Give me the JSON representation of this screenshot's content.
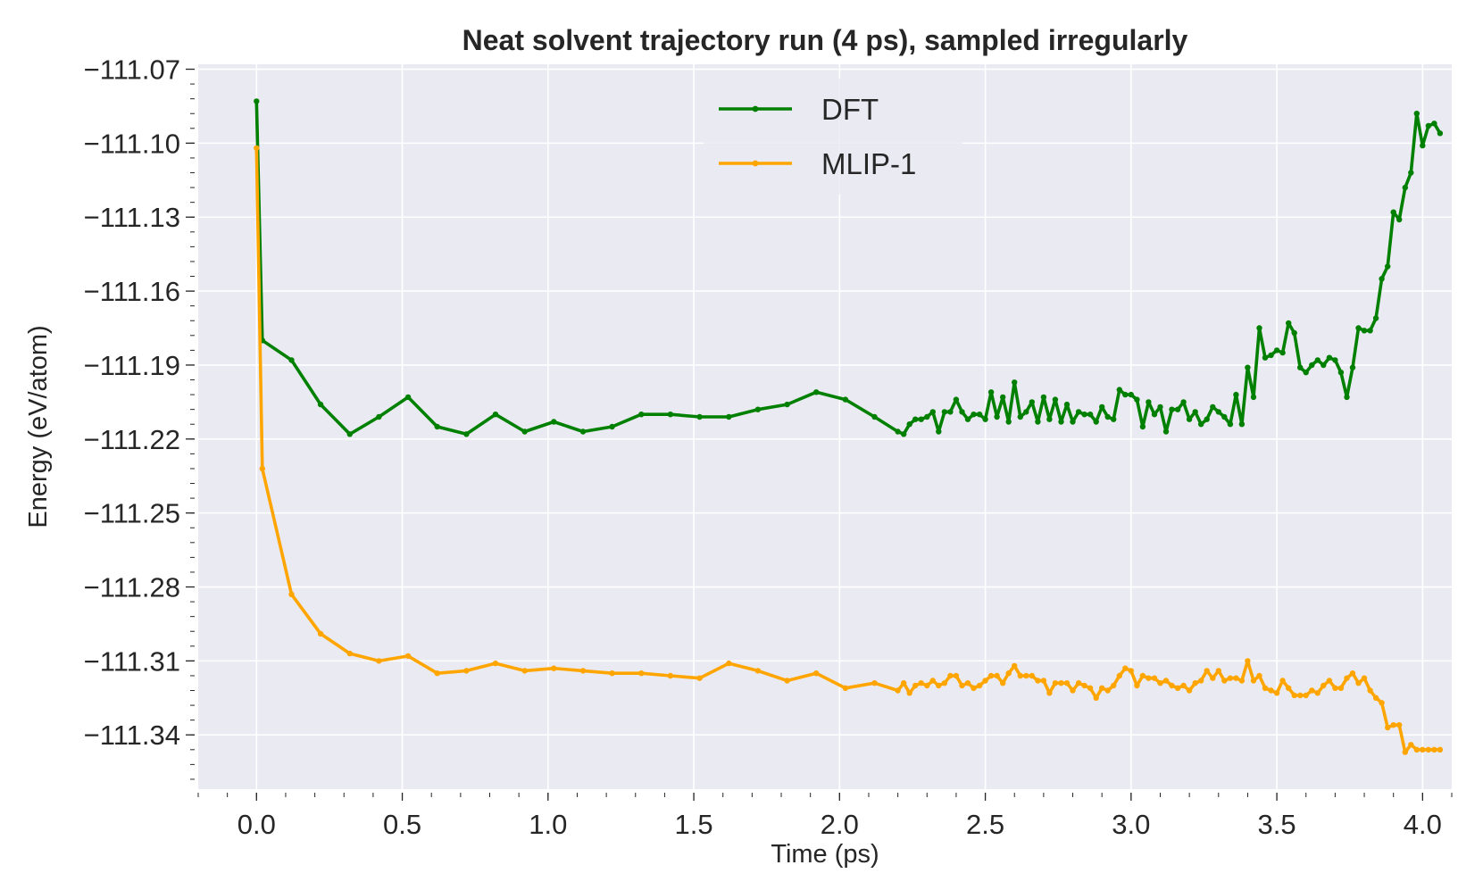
{
  "chart_data": {
    "type": "line",
    "title": "Neat solvent trajectory run (4 ps), sampled irregularly",
    "xlabel": "Time (ps)",
    "ylabel": "Energy (eV/atom)",
    "xlim": [
      -0.2,
      4.1
    ],
    "ylim": [
      -111.362,
      -111.068
    ],
    "xticks": [
      0.0,
      0.5,
      1.0,
      1.5,
      2.0,
      2.5,
      3.0,
      3.5,
      4.0
    ],
    "xtick_labels": [
      "0.0",
      "0.5",
      "1.0",
      "1.5",
      "2.0",
      "2.5",
      "3.0",
      "3.5",
      "4.0"
    ],
    "yticks": [
      -111.07,
      -111.1,
      -111.13,
      -111.16,
      -111.19,
      -111.22,
      -111.25,
      -111.28,
      -111.31,
      -111.34
    ],
    "ytick_labels": [
      "−111.07",
      "−111.10",
      "−111.13",
      "−111.16",
      "−111.19",
      "−111.22",
      "−111.25",
      "−111.28",
      "−111.31",
      "−111.34"
    ],
    "grid": true,
    "legend": "upper center",
    "colors": {
      "plot_bg": "#eaeaf2",
      "grid": "#ffffff",
      "text": "#262626",
      "dft": "#008000",
      "mlip": "#ffa500"
    },
    "series": [
      {
        "name": "DFT",
        "color": "#008000",
        "points": [
          [
            0.0,
            -111.083
          ],
          [
            0.02,
            -111.18
          ],
          [
            0.12,
            -111.188
          ],
          [
            0.22,
            -111.206
          ],
          [
            0.32,
            -111.218
          ],
          [
            0.42,
            -111.211
          ],
          [
            0.52,
            -111.203
          ],
          [
            0.62,
            -111.215
          ],
          [
            0.72,
            -111.218
          ],
          [
            0.82,
            -111.21
          ],
          [
            0.92,
            -111.217
          ],
          [
            1.02,
            -111.213
          ],
          [
            1.12,
            -111.217
          ],
          [
            1.22,
            -111.215
          ],
          [
            1.32,
            -111.21
          ],
          [
            1.42,
            -111.21
          ],
          [
            1.52,
            -111.211
          ],
          [
            1.62,
            -111.211
          ],
          [
            1.72,
            -111.208
          ],
          [
            1.82,
            -111.206
          ],
          [
            1.92,
            -111.201
          ],
          [
            2.02,
            -111.204
          ],
          [
            2.12,
            -111.211
          ],
          [
            2.2,
            -111.217
          ],
          [
            2.22,
            -111.218
          ],
          [
            2.24,
            -111.214
          ],
          [
            2.26,
            -111.212
          ],
          [
            2.28,
            -111.212
          ],
          [
            2.3,
            -111.211
          ],
          [
            2.32,
            -111.209
          ],
          [
            2.34,
            -111.217
          ],
          [
            2.36,
            -111.209
          ],
          [
            2.38,
            -111.209
          ],
          [
            2.4,
            -111.204
          ],
          [
            2.42,
            -111.209
          ],
          [
            2.44,
            -111.212
          ],
          [
            2.46,
            -111.21
          ],
          [
            2.48,
            -111.21
          ],
          [
            2.5,
            -111.212
          ],
          [
            2.52,
            -111.201
          ],
          [
            2.54,
            -111.211
          ],
          [
            2.56,
            -111.203
          ],
          [
            2.58,
            -111.213
          ],
          [
            2.6,
            -111.197
          ],
          [
            2.62,
            -111.211
          ],
          [
            2.64,
            -111.209
          ],
          [
            2.66,
            -111.205
          ],
          [
            2.68,
            -111.213
          ],
          [
            2.7,
            -111.203
          ],
          [
            2.72,
            -111.212
          ],
          [
            2.74,
            -111.204
          ],
          [
            2.76,
            -111.213
          ],
          [
            2.78,
            -111.206
          ],
          [
            2.8,
            -111.213
          ],
          [
            2.82,
            -111.209
          ],
          [
            2.84,
            -111.21
          ],
          [
            2.86,
            -111.21
          ],
          [
            2.88,
            -111.213
          ],
          [
            2.9,
            -111.207
          ],
          [
            2.92,
            -111.211
          ],
          [
            2.94,
            -111.212
          ],
          [
            2.96,
            -111.2
          ],
          [
            2.98,
            -111.202
          ],
          [
            3.0,
            -111.202
          ],
          [
            3.02,
            -111.204
          ],
          [
            3.04,
            -111.215
          ],
          [
            3.06,
            -111.205
          ],
          [
            3.08,
            -111.21
          ],
          [
            3.1,
            -111.207
          ],
          [
            3.12,
            -111.217
          ],
          [
            3.14,
            -111.208
          ],
          [
            3.16,
            -111.208
          ],
          [
            3.18,
            -111.205
          ],
          [
            3.2,
            -111.212
          ],
          [
            3.22,
            -111.209
          ],
          [
            3.24,
            -111.214
          ],
          [
            3.26,
            -111.212
          ],
          [
            3.28,
            -111.207
          ],
          [
            3.3,
            -111.209
          ],
          [
            3.32,
            -111.211
          ],
          [
            3.34,
            -111.214
          ],
          [
            3.36,
            -111.202
          ],
          [
            3.38,
            -111.214
          ],
          [
            3.4,
            -111.191
          ],
          [
            3.42,
            -111.203
          ],
          [
            3.44,
            -111.175
          ],
          [
            3.46,
            -111.187
          ],
          [
            3.48,
            -111.186
          ],
          [
            3.5,
            -111.184
          ],
          [
            3.52,
            -111.185
          ],
          [
            3.54,
            -111.173
          ],
          [
            3.56,
            -111.177
          ],
          [
            3.58,
            -111.191
          ],
          [
            3.6,
            -111.193
          ],
          [
            3.62,
            -111.19
          ],
          [
            3.64,
            -111.188
          ],
          [
            3.66,
            -111.19
          ],
          [
            3.68,
            -111.187
          ],
          [
            3.7,
            -111.188
          ],
          [
            3.72,
            -111.193
          ],
          [
            3.74,
            -111.203
          ],
          [
            3.76,
            -111.191
          ],
          [
            3.78,
            -111.175
          ],
          [
            3.8,
            -111.176
          ],
          [
            3.82,
            -111.176
          ],
          [
            3.84,
            -111.171
          ],
          [
            3.86,
            -111.155
          ],
          [
            3.88,
            -111.15
          ],
          [
            3.9,
            -111.128
          ],
          [
            3.92,
            -111.131
          ],
          [
            3.94,
            -111.118
          ],
          [
            3.96,
            -111.112
          ],
          [
            3.98,
            -111.088
          ],
          [
            4.0,
            -111.101
          ],
          [
            4.02,
            -111.093
          ],
          [
            4.04,
            -111.092
          ],
          [
            4.06,
            -111.096
          ]
        ]
      },
      {
        "name": "MLIP-1",
        "color": "#ffa500",
        "points": [
          [
            0.0,
            -111.102
          ],
          [
            0.02,
            -111.232
          ],
          [
            0.12,
            -111.283
          ],
          [
            0.22,
            -111.299
          ],
          [
            0.32,
            -111.307
          ],
          [
            0.42,
            -111.31
          ],
          [
            0.52,
            -111.308
          ],
          [
            0.62,
            -111.315
          ],
          [
            0.72,
            -111.314
          ],
          [
            0.82,
            -111.311
          ],
          [
            0.92,
            -111.314
          ],
          [
            1.02,
            -111.313
          ],
          [
            1.12,
            -111.314
          ],
          [
            1.22,
            -111.315
          ],
          [
            1.32,
            -111.315
          ],
          [
            1.42,
            -111.316
          ],
          [
            1.52,
            -111.317
          ],
          [
            1.62,
            -111.311
          ],
          [
            1.72,
            -111.314
          ],
          [
            1.82,
            -111.318
          ],
          [
            1.92,
            -111.315
          ],
          [
            2.02,
            -111.321
          ],
          [
            2.12,
            -111.319
          ],
          [
            2.2,
            -111.322
          ],
          [
            2.22,
            -111.319
          ],
          [
            2.24,
            -111.323
          ],
          [
            2.26,
            -111.32
          ],
          [
            2.28,
            -111.319
          ],
          [
            2.3,
            -111.32
          ],
          [
            2.32,
            -111.318
          ],
          [
            2.34,
            -111.32
          ],
          [
            2.36,
            -111.319
          ],
          [
            2.38,
            -111.316
          ],
          [
            2.4,
            -111.316
          ],
          [
            2.42,
            -111.32
          ],
          [
            2.44,
            -111.319
          ],
          [
            2.46,
            -111.321
          ],
          [
            2.48,
            -111.32
          ],
          [
            2.5,
            -111.318
          ],
          [
            2.52,
            -111.316
          ],
          [
            2.54,
            -111.316
          ],
          [
            2.56,
            -111.319
          ],
          [
            2.58,
            -111.315
          ],
          [
            2.6,
            -111.312
          ],
          [
            2.62,
            -111.316
          ],
          [
            2.64,
            -111.316
          ],
          [
            2.66,
            -111.316
          ],
          [
            2.68,
            -111.318
          ],
          [
            2.7,
            -111.318
          ],
          [
            2.72,
            -111.323
          ],
          [
            2.74,
            -111.319
          ],
          [
            2.76,
            -111.319
          ],
          [
            2.78,
            -111.319
          ],
          [
            2.8,
            -111.322
          ],
          [
            2.82,
            -111.319
          ],
          [
            2.84,
            -111.32
          ],
          [
            2.86,
            -111.321
          ],
          [
            2.88,
            -111.325
          ],
          [
            2.9,
            -111.321
          ],
          [
            2.92,
            -111.322
          ],
          [
            2.94,
            -111.32
          ],
          [
            2.96,
            -111.316
          ],
          [
            2.98,
            -111.313
          ],
          [
            3.0,
            -111.314
          ],
          [
            3.02,
            -111.32
          ],
          [
            3.04,
            -111.316
          ],
          [
            3.06,
            -111.317
          ],
          [
            3.08,
            -111.317
          ],
          [
            3.1,
            -111.319
          ],
          [
            3.12,
            -111.318
          ],
          [
            3.14,
            -111.32
          ],
          [
            3.16,
            -111.321
          ],
          [
            3.18,
            -111.32
          ],
          [
            3.2,
            -111.322
          ],
          [
            3.22,
            -111.319
          ],
          [
            3.24,
            -111.318
          ],
          [
            3.26,
            -111.314
          ],
          [
            3.28,
            -111.317
          ],
          [
            3.3,
            -111.314
          ],
          [
            3.32,
            -111.318
          ],
          [
            3.34,
            -111.317
          ],
          [
            3.36,
            -111.317
          ],
          [
            3.38,
            -111.318
          ],
          [
            3.4,
            -111.31
          ],
          [
            3.42,
            -111.318
          ],
          [
            3.44,
            -111.316
          ],
          [
            3.46,
            -111.321
          ],
          [
            3.48,
            -111.322
          ],
          [
            3.5,
            -111.323
          ],
          [
            3.52,
            -111.318
          ],
          [
            3.54,
            -111.321
          ],
          [
            3.56,
            -111.324
          ],
          [
            3.58,
            -111.324
          ],
          [
            3.6,
            -111.324
          ],
          [
            3.62,
            -111.322
          ],
          [
            3.64,
            -111.323
          ],
          [
            3.66,
            -111.32
          ],
          [
            3.68,
            -111.318
          ],
          [
            3.7,
            -111.321
          ],
          [
            3.72,
            -111.321
          ],
          [
            3.74,
            -111.317
          ],
          [
            3.76,
            -111.315
          ],
          [
            3.78,
            -111.319
          ],
          [
            3.8,
            -111.317
          ],
          [
            3.82,
            -111.322
          ],
          [
            3.84,
            -111.325
          ],
          [
            3.86,
            -111.327
          ],
          [
            3.88,
            -111.337
          ],
          [
            3.9,
            -111.336
          ],
          [
            3.92,
            -111.336
          ],
          [
            3.94,
            -111.347
          ],
          [
            3.96,
            -111.344
          ],
          [
            3.98,
            -111.346
          ],
          [
            4.0,
            -111.346
          ],
          [
            4.02,
            -111.346
          ],
          [
            4.04,
            -111.346
          ],
          [
            4.06,
            -111.346
          ]
        ]
      }
    ]
  }
}
